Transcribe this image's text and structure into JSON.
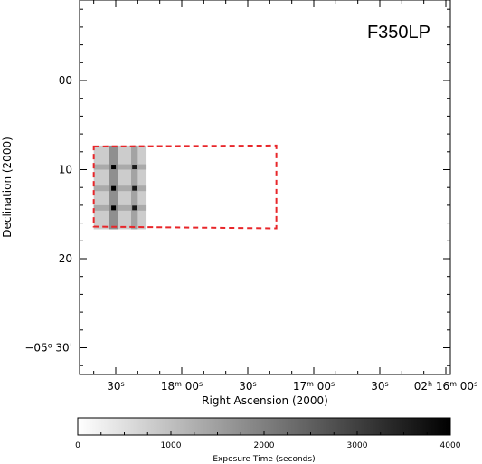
{
  "chart_data": {
    "type": "heatmap",
    "title": "F350LP",
    "xlabel": "Right Ascension (2000)",
    "ylabel": "Declination (2000)",
    "x_ticks": [
      {
        "label_parts": [
          [
            "",
            "30"
          ],
          [
            "sup",
            "s"
          ]
        ]
      },
      {
        "label_parts": [
          [
            "",
            "18"
          ],
          [
            "sup",
            "m"
          ],
          [
            "",
            " 00"
          ],
          [
            "sup",
            "s"
          ]
        ]
      },
      {
        "label_parts": [
          [
            "",
            "30"
          ],
          [
            "sup",
            "s"
          ]
        ]
      },
      {
        "label_parts": [
          [
            "",
            "17"
          ],
          [
            "sup",
            "m"
          ],
          [
            "",
            " 00"
          ],
          [
            "sup",
            "s"
          ]
        ]
      },
      {
        "label_parts": [
          [
            "",
            "30"
          ],
          [
            "sup",
            "s"
          ]
        ]
      },
      {
        "label_parts": [
          [
            "",
            "02"
          ],
          [
            "sup",
            "h"
          ],
          [
            "",
            " 16"
          ],
          [
            "sup",
            "m"
          ],
          [
            "",
            " 00"
          ],
          [
            "sup",
            "s"
          ]
        ]
      }
    ],
    "x_tick_values_sec": [
      30,
      0,
      -30,
      -60,
      -90,
      -120
    ],
    "y_ticks": [
      {
        "value": 0,
        "label_parts": [
          [
            "",
            "00"
          ]
        ]
      },
      {
        "value": 10,
        "label_parts": [
          [
            "",
            "10"
          ]
        ]
      },
      {
        "value": 20,
        "label_parts": [
          [
            "",
            "20"
          ]
        ]
      },
      {
        "value": 30,
        "label_parts": [
          [
            "",
            "−05"
          ],
          [
            "sup",
            "o"
          ],
          [
            "",
            " 30'"
          ]
        ]
      }
    ],
    "footprint_outline": {
      "style": "dashed",
      "color": "#e8262a",
      "corners": [
        [
          40,
          7.4
        ],
        [
          -43,
          7.3
        ],
        [
          -43,
          16.6
        ],
        [
          40,
          16.4
        ]
      ]
    },
    "exposure_tiles": {
      "color_min": 0,
      "color_max": 4000,
      "base": {
        "x_range": [
          40,
          16
        ],
        "y_range": [
          7.3,
          16.7
        ],
        "value": 800
      },
      "vertical_strips": [
        {
          "x_range": [
            33,
            29
          ],
          "y_range": [
            7.3,
            16.7
          ],
          "value": 2000
        },
        {
          "x_range": [
            23,
            20
          ],
          "y_range": [
            7.3,
            16.7
          ],
          "value": 1600
        }
      ],
      "horizontal_strips": [
        {
          "x_range": [
            40,
            16
          ],
          "y_range": [
            9.4,
            10.0
          ],
          "value": 1500
        },
        {
          "x_range": [
            40,
            16
          ],
          "y_range": [
            11.8,
            12.4
          ],
          "value": 1500
        },
        {
          "x_range": [
            40,
            16
          ],
          "y_range": [
            14.0,
            14.6
          ],
          "value": 1500
        }
      ],
      "peaks": [
        {
          "x": 31,
          "y": 9.7,
          "value": 4000
        },
        {
          "x": 31,
          "y": 12.1,
          "value": 4000
        },
        {
          "x": 31,
          "y": 14.3,
          "value": 4000
        },
        {
          "x": 21.5,
          "y": 9.7,
          "value": 3600
        },
        {
          "x": 21.5,
          "y": 12.1,
          "value": 3600
        },
        {
          "x": 21.5,
          "y": 14.3,
          "value": 3600
        }
      ]
    },
    "colorbar": {
      "label": "Exposure Time (seconds)",
      "ticks": [
        "0",
        "1000",
        "2000",
        "3000",
        "4000"
      ],
      "tick_values": [
        0,
        1000,
        2000,
        3000,
        4000
      ],
      "min": 0,
      "max": 4000,
      "color_low": "#ffffff",
      "color_high": "#000000"
    },
    "grid": false,
    "legend": "none"
  }
}
